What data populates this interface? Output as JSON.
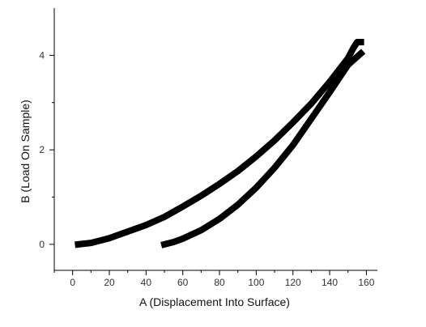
{
  "chart_data": {
    "type": "line",
    "xlabel": "A (Displacement Into Surface)",
    "ylabel": "B (Load On Sample)",
    "xlim": [
      -10,
      166
    ],
    "ylim": [
      -0.55,
      5.0
    ],
    "xticks": [
      0,
      20,
      40,
      60,
      80,
      100,
      120,
      140,
      160
    ],
    "yticks": [
      0,
      2,
      4
    ],
    "grid": false,
    "series": [
      {
        "name": "",
        "x": [
          3,
          10,
          20,
          30,
          40,
          50,
          60,
          70,
          80,
          90,
          100,
          110,
          120,
          130,
          140,
          150,
          153,
          155,
          157
        ],
        "y": [
          0.0,
          0.03,
          0.13,
          0.27,
          0.41,
          0.58,
          0.8,
          1.03,
          1.28,
          1.55,
          1.86,
          2.2,
          2.58,
          2.98,
          3.44,
          3.94,
          4.16,
          4.28,
          4.28
        ]
      },
      {
        "name": "",
        "x": [
          157,
          150,
          140,
          130,
          120,
          110,
          100,
          90,
          80,
          70,
          60,
          55,
          50
        ],
        "y": [
          4.04,
          3.8,
          3.22,
          2.66,
          2.1,
          1.62,
          1.2,
          0.84,
          0.54,
          0.3,
          0.12,
          0.05,
          0.0
        ]
      }
    ]
  }
}
